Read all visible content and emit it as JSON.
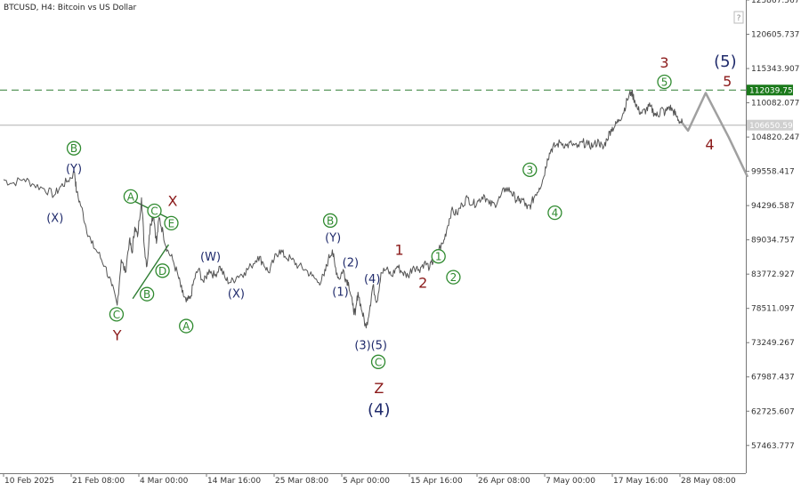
{
  "header": {
    "title": "BTCUSD, H4:  Bitcoin vs US Dollar"
  },
  "colors": {
    "price_line": "#555555",
    "forecast_line": "#a0a0a0",
    "red_label": "#8b1a1a",
    "navy_label": "#1f2a6b",
    "green_label": "#2f8a2f",
    "resistance_line": "#2e7d32",
    "current_price_line": "#b0b0b0",
    "resistance_badge": "#1b7a1b",
    "current_badge": "#cfcfcf"
  },
  "chart_data": {
    "type": "line",
    "symbol": "BTCUSD",
    "timeframe": "H4",
    "title": "BTCUSD, H4:  Bitcoin vs US Dollar",
    "x_ticks": [
      "10 Feb 2025",
      "21 Feb 08:00",
      "4 Mar 00:00",
      "14 Mar 16:00",
      "25 Mar 08:00",
      "5 Apr 00:00",
      "15 Apr 16:00",
      "26 Apr 08:00",
      "7 May 00:00",
      "17 May 16:00",
      "28 May 08:00"
    ],
    "y_ticks": [
      "125867.567",
      "120605.737",
      "115343.907",
      "110082.077",
      "104820.247",
      "99558.417",
      "94296.587",
      "89034.757",
      "83772.927",
      "78511.097",
      "73249.267",
      "67987.437",
      "62725.607",
      "57463.777"
    ],
    "ylim": [
      53200,
      125867.567
    ],
    "x_index_range": [
      0,
      11
    ],
    "price": [
      [
        0,
        98300
      ],
      [
        0.12,
        97700
      ],
      [
        0.3,
        98400
      ],
      [
        0.45,
        97500
      ],
      [
        0.6,
        96900
      ],
      [
        0.75,
        95900
      ],
      [
        0.85,
        97300
      ],
      [
        0.95,
        98100
      ],
      [
        1.05,
        99400
      ],
      [
        1.08,
        96300
      ],
      [
        1.15,
        94100
      ],
      [
        1.22,
        91000
      ],
      [
        1.3,
        88500
      ],
      [
        1.4,
        87000
      ],
      [
        1.5,
        85000
      ],
      [
        1.6,
        82000
      ],
      [
        1.68,
        79000
      ],
      [
        1.74,
        86000
      ],
      [
        1.8,
        84000
      ],
      [
        1.86,
        89000
      ],
      [
        1.9,
        87000
      ],
      [
        1.94,
        91000
      ],
      [
        1.98,
        89500
      ],
      [
        2.04,
        95500
      ],
      [
        2.08,
        88000
      ],
      [
        2.12,
        85000
      ],
      [
        2.17,
        91500
      ],
      [
        2.22,
        93000
      ],
      [
        2.26,
        88500
      ],
      [
        2.3,
        92500
      ],
      [
        2.36,
        90000
      ],
      [
        2.42,
        87500
      ],
      [
        2.5,
        86000
      ],
      [
        2.58,
        83500
      ],
      [
        2.64,
        81000
      ],
      [
        2.7,
        79500
      ],
      [
        2.76,
        80000
      ],
      [
        2.82,
        83000
      ],
      [
        2.88,
        84500
      ],
      [
        2.96,
        82500
      ],
      [
        3.04,
        84500
      ],
      [
        3.12,
        83500
      ],
      [
        3.2,
        85000
      ],
      [
        3.28,
        83000
      ],
      [
        3.36,
        82500
      ],
      [
        3.46,
        83500
      ],
      [
        3.56,
        84000
      ],
      [
        3.66,
        85000
      ],
      [
        3.76,
        86500
      ],
      [
        3.84,
        85500
      ],
      [
        3.92,
        84000
      ],
      [
        4.0,
        86000
      ],
      [
        4.08,
        87500
      ],
      [
        4.16,
        86500
      ],
      [
        4.26,
        86000
      ],
      [
        4.36,
        85000
      ],
      [
        4.46,
        84500
      ],
      [
        4.56,
        83500
      ],
      [
        4.66,
        82500
      ],
      [
        4.74,
        83500
      ],
      [
        4.8,
        86000
      ],
      [
        4.86,
        87500
      ],
      [
        4.9,
        85000
      ],
      [
        4.96,
        83000
      ],
      [
        5.02,
        84500
      ],
      [
        5.06,
        83000
      ],
      [
        5.1,
        82500
      ],
      [
        5.16,
        79000
      ],
      [
        5.2,
        77500
      ],
      [
        5.24,
        81000
      ],
      [
        5.3,
        78000
      ],
      [
        5.36,
        75500
      ],
      [
        5.42,
        79000
      ],
      [
        5.46,
        82000
      ],
      [
        5.52,
        79500
      ],
      [
        5.58,
        84000
      ],
      [
        5.66,
        84500
      ],
      [
        5.74,
        83500
      ],
      [
        5.82,
        85000
      ],
      [
        5.9,
        84000
      ],
      [
        5.98,
        83500
      ],
      [
        6.06,
        85000
      ],
      [
        6.14,
        84500
      ],
      [
        6.22,
        85500
      ],
      [
        6.3,
        84800
      ],
      [
        6.36,
        86000
      ],
      [
        6.42,
        87500
      ],
      [
        6.5,
        88500
      ],
      [
        6.56,
        91000
      ],
      [
        6.62,
        93500
      ],
      [
        6.7,
        93000
      ],
      [
        6.78,
        94500
      ],
      [
        6.86,
        95500
      ],
      [
        6.94,
        94500
      ],
      [
        7.02,
        95000
      ],
      [
        7.1,
        96000
      ],
      [
        7.18,
        94500
      ],
      [
        7.26,
        94500
      ],
      [
        7.34,
        95500
      ],
      [
        7.42,
        97000
      ],
      [
        7.5,
        96500
      ],
      [
        7.56,
        95500
      ],
      [
        7.62,
        95000
      ],
      [
        7.68,
        95200
      ],
      [
        7.74,
        93800
      ],
      [
        7.8,
        94500
      ],
      [
        7.86,
        96000
      ],
      [
        7.92,
        97000
      ],
      [
        7.98,
        98500
      ],
      [
        8.04,
        101500
      ],
      [
        8.1,
        103000
      ],
      [
        8.16,
        103500
      ],
      [
        8.24,
        104000
      ],
      [
        8.32,
        103500
      ],
      [
        8.4,
        103800
      ],
      [
        8.48,
        103200
      ],
      [
        8.56,
        104000
      ],
      [
        8.64,
        103600
      ],
      [
        8.72,
        103500
      ],
      [
        8.8,
        104200
      ],
      [
        8.86,
        103000
      ],
      [
        8.92,
        104500
      ],
      [
        8.98,
        106000
      ],
      [
        9.04,
        106500
      ],
      [
        9.1,
        107500
      ],
      [
        9.16,
        108500
      ],
      [
        9.22,
        110500
      ],
      [
        9.28,
        111800
      ],
      [
        9.33,
        110500
      ],
      [
        9.38,
        109000
      ],
      [
        9.44,
        108500
      ],
      [
        9.5,
        109000
      ],
      [
        9.56,
        109500
      ],
      [
        9.62,
        108500
      ],
      [
        9.68,
        108000
      ],
      [
        9.72,
        109200
      ],
      [
        9.78,
        108500
      ],
      [
        9.84,
        109500
      ],
      [
        9.9,
        108800
      ],
      [
        9.94,
        108200
      ],
      [
        10.0,
        107200
      ],
      [
        10.04,
        106900
      ]
    ],
    "forecast": [
      [
        10.04,
        106900
      ],
      [
        10.12,
        105800
      ],
      [
        10.38,
        111600
      ],
      [
        10.72,
        104800
      ],
      [
        11.0,
        98700
      ]
    ],
    "horizontal_lines": [
      {
        "value": 112039.758,
        "label": "112039.758",
        "style": "dashed"
      },
      {
        "value": 106650.59,
        "label": "106650.590",
        "style": "solid"
      }
    ],
    "trendlines": [
      [
        [
          1.85,
          95400
        ],
        [
          2.45,
          92300
        ]
      ],
      [
        [
          1.91,
          80000
        ],
        [
          2.44,
          88300
        ]
      ]
    ],
    "wave_labels": [
      {
        "text": "B",
        "x": 1.04,
        "y": 103100,
        "color": "green",
        "circle": true
      },
      {
        "text": "(Y)",
        "x": 1.04,
        "y": 100000,
        "color": "navy"
      },
      {
        "text": "(X)",
        "x": 0.76,
        "y": 92400,
        "color": "navy"
      },
      {
        "text": "A",
        "x": 1.88,
        "y": 95700,
        "color": "green",
        "circle": true
      },
      {
        "text": "C",
        "x": 2.23,
        "y": 93500,
        "color": "green",
        "circle": true
      },
      {
        "text": "X",
        "x": 2.5,
        "y": 95000,
        "color": "red"
      },
      {
        "text": "E",
        "x": 2.48,
        "y": 91600,
        "color": "green",
        "circle": true
      },
      {
        "text": "D",
        "x": 2.35,
        "y": 84300,
        "color": "green",
        "circle": true
      },
      {
        "text": "B",
        "x": 2.12,
        "y": 80700,
        "color": "green",
        "circle": true
      },
      {
        "text": "C",
        "x": 1.67,
        "y": 77600,
        "color": "green",
        "circle": true
      },
      {
        "text": "Y",
        "x": 1.68,
        "y": 74400,
        "color": "red"
      },
      {
        "text": "A",
        "x": 2.7,
        "y": 75800,
        "color": "green",
        "circle": true
      },
      {
        "text": "(W)",
        "x": 3.06,
        "y": 86500,
        "color": "navy"
      },
      {
        "text": "(X)",
        "x": 3.44,
        "y": 80800,
        "color": "navy"
      },
      {
        "text": "B",
        "x": 4.83,
        "y": 92000,
        "color": "green",
        "circle": true
      },
      {
        "text": "(Y)",
        "x": 4.87,
        "y": 89400,
        "color": "navy"
      },
      {
        "text": "(2)",
        "x": 5.13,
        "y": 85600,
        "color": "navy"
      },
      {
        "text": "(1)",
        "x": 4.98,
        "y": 81100,
        "color": "navy"
      },
      {
        "text": "(4)",
        "x": 5.45,
        "y": 83100,
        "color": "navy"
      },
      {
        "text": "(3)",
        "x": 5.31,
        "y": 72900,
        "color": "navy"
      },
      {
        "text": "(5)",
        "x": 5.55,
        "y": 72900,
        "color": "navy"
      },
      {
        "text": "C",
        "x": 5.54,
        "y": 70300,
        "color": "green",
        "circle": true
      },
      {
        "text": "Z",
        "x": 5.55,
        "y": 66300,
        "color": "red"
      },
      {
        "text": "(4)",
        "x": 5.55,
        "y": 63000,
        "color": "navy"
      },
      {
        "text": "1",
        "x": 5.85,
        "y": 87500,
        "color": "red"
      },
      {
        "text": "2",
        "x": 6.2,
        "y": 82500,
        "color": "red"
      },
      {
        "text": "1",
        "x": 6.43,
        "y": 86500,
        "color": "green",
        "circle": true
      },
      {
        "text": "2",
        "x": 6.65,
        "y": 83300,
        "color": "green",
        "circle": true
      },
      {
        "text": "3",
        "x": 7.78,
        "y": 99800,
        "color": "green",
        "circle": true
      },
      {
        "text": "4",
        "x": 8.15,
        "y": 93200,
        "color": "green",
        "circle": true
      },
      {
        "text": "3",
        "x": 9.77,
        "y": 116300,
        "color": "red"
      },
      {
        "text": "5",
        "x": 9.77,
        "y": 113300,
        "color": "green",
        "circle": true
      },
      {
        "text": "(5)",
        "x": 10.67,
        "y": 116500,
        "color": "navy"
      },
      {
        "text": "5",
        "x": 10.7,
        "y": 113400,
        "color": "red"
      },
      {
        "text": "4",
        "x": 10.44,
        "y": 103700,
        "color": "red"
      }
    ]
  }
}
